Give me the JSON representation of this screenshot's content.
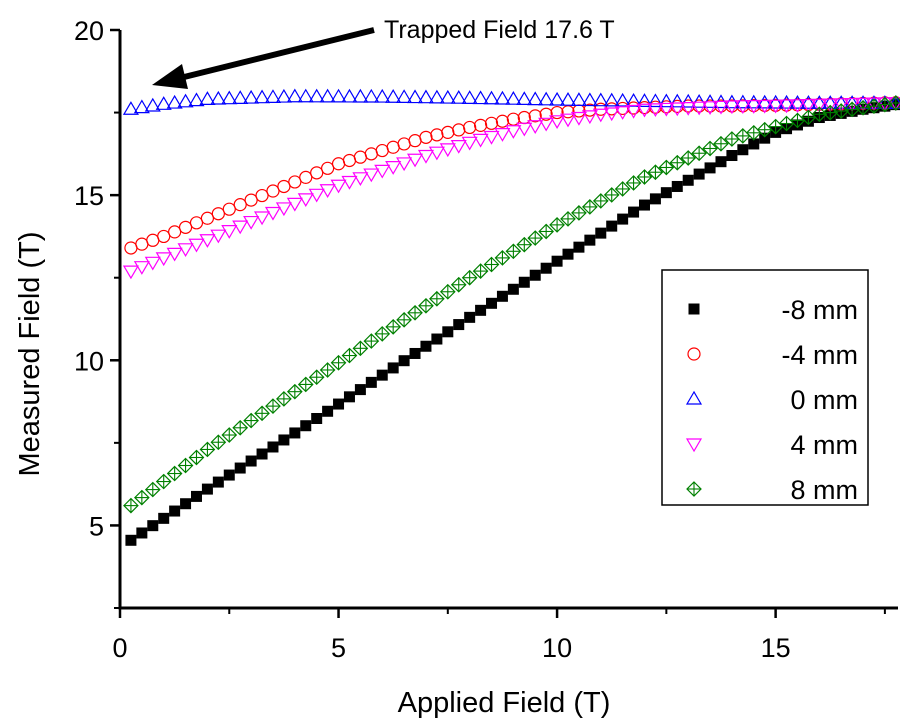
{
  "chart_data": {
    "type": "scatter",
    "xlabel": "Applied Field (T)",
    "ylabel": "Measured Field (T)",
    "xlim": [
      0,
      17.8
    ],
    "ylim": [
      2.5,
      20
    ],
    "x_ticks": [
      "0",
      "5",
      "10",
      "15"
    ],
    "y_ticks": [
      "5",
      "10",
      "15",
      "20"
    ],
    "legend_position": "right",
    "annotation": {
      "text": "Trapped Field 17.6 T"
    },
    "series": [
      {
        "name": "-8 mm",
        "marker": "filled-square",
        "color": "#000000",
        "x": [
          0.25,
          2,
          4,
          6,
          8,
          10,
          12,
          14,
          15,
          16,
          17,
          17.8
        ],
        "y": [
          4.55,
          6.1,
          7.8,
          9.55,
          11.3,
          13.0,
          14.7,
          16.2,
          16.9,
          17.35,
          17.6,
          17.75
        ]
      },
      {
        "name": "-4 mm",
        "marker": "open-circle",
        "color": "#ff0000",
        "x": [
          0.25,
          1,
          2,
          3,
          4,
          5,
          6,
          7,
          8,
          9,
          10,
          11,
          12,
          13,
          14,
          15,
          16,
          17,
          17.8
        ],
        "y": [
          13.4,
          13.75,
          14.3,
          14.85,
          15.4,
          15.95,
          16.35,
          16.75,
          17.05,
          17.3,
          17.5,
          17.6,
          17.65,
          17.7,
          17.7,
          17.72,
          17.75,
          17.78,
          17.8
        ]
      },
      {
        "name": "0 mm",
        "marker": "open-triangle-up",
        "color": "#0000ff",
        "x": [
          0.25,
          1,
          2,
          4,
          6,
          8,
          10,
          12,
          14,
          16,
          17.8
        ],
        "y": [
          17.6,
          17.75,
          17.9,
          17.98,
          17.97,
          17.93,
          17.88,
          17.84,
          17.8,
          17.78,
          17.78
        ]
      },
      {
        "name": "4 mm",
        "marker": "open-triangle-down",
        "color": "#ff00ff",
        "x": [
          0.25,
          1,
          2,
          3,
          4,
          5,
          6,
          7,
          8,
          9,
          10,
          11,
          12,
          13,
          14,
          15,
          16,
          17,
          17.8
        ],
        "y": [
          12.7,
          13.1,
          13.65,
          14.2,
          14.75,
          15.3,
          15.75,
          16.2,
          16.6,
          16.95,
          17.25,
          17.45,
          17.6,
          17.65,
          17.7,
          17.72,
          17.75,
          17.78,
          17.8
        ]
      },
      {
        "name": "8 mm",
        "marker": "open-crossed-diamond",
        "color": "#008000",
        "x": [
          0.25,
          2,
          4,
          6,
          8,
          10,
          12,
          14,
          16,
          17.8
        ],
        "y": [
          5.6,
          7.3,
          9.05,
          10.8,
          12.5,
          14.1,
          15.55,
          16.7,
          17.45,
          17.8
        ]
      }
    ]
  }
}
